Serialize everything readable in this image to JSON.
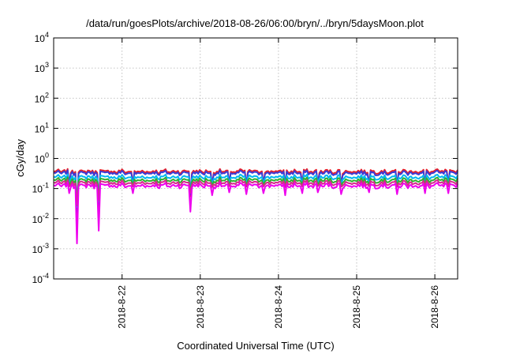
{
  "chart_data": {
    "type": "line",
    "title": "/data/run/goesPlots/archive/2018-08-26/06:00/bryn/../bryn/5daysMoon.plot",
    "xlabel": "Coordinated Universal Time (UTC)",
    "ylabel": "cGy/day",
    "yscale": "log",
    "ylim": [
      0.0001,
      10000
    ],
    "y_ticks": [
      {
        "base": "10",
        "exp": "-4"
      },
      {
        "base": "10",
        "exp": "-3"
      },
      {
        "base": "10",
        "exp": "-2"
      },
      {
        "base": "10",
        "exp": "-1"
      },
      {
        "base": "10",
        "exp": "0"
      },
      {
        "base": "10",
        "exp": "1"
      },
      {
        "base": "10",
        "exp": "2"
      },
      {
        "base": "10",
        "exp": "3"
      },
      {
        "base": "10",
        "exp": "4"
      }
    ],
    "xlim": [
      "2018-08-21 03:00",
      "2018-08-26 07:00"
    ],
    "x_ticks": [
      "2018-8-22",
      "2018-8-23",
      "2018-8-24",
      "2018-8-25",
      "2018-8-26"
    ],
    "grid": true,
    "legend": "none",
    "series": [
      {
        "color": "#e8202a",
        "base": 0.37,
        "spike_depth": 0.62
      },
      {
        "color": "#3b3bd6",
        "base": 0.33,
        "spike_depth": 0.55
      },
      {
        "color": "#00b8f0",
        "base": 0.24,
        "spike_depth": 0.45
      },
      {
        "color": "#30b030",
        "base": 0.19,
        "spike_depth": 0.4
      },
      {
        "color": "#d42a8a",
        "base": 0.155,
        "spike_depth": 0.35
      },
      {
        "color": "#ee00ee",
        "base": 0.125,
        "spike_depth": 1.0
      }
    ],
    "dips": [
      {
        "t": "2018-08-21 10:15",
        "min": 0.0015
      },
      {
        "t": "2018-08-21 17:00",
        "min": 0.004
      },
      {
        "t": "2018-08-22 21:00",
        "min": 0.017
      },
      {
        "t": "2018-08-21 08:00",
        "min": 0.07
      },
      {
        "t": "2018-08-22 03:30",
        "min": 0.07
      },
      {
        "t": "2018-08-23 03:30",
        "min": 0.06
      },
      {
        "t": "2018-08-23 08:40",
        "min": 0.075
      },
      {
        "t": "2018-08-23 14:20",
        "min": 0.065
      },
      {
        "t": "2018-08-23 19:30",
        "min": 0.07
      },
      {
        "t": "2018-08-24 02:00",
        "min": 0.06
      },
      {
        "t": "2018-08-24 07:30",
        "min": 0.07
      },
      {
        "t": "2018-08-24 12:00",
        "min": 0.075
      },
      {
        "t": "2018-08-24 19:00",
        "min": 0.065
      },
      {
        "t": "2018-08-25 04:00",
        "min": 0.075
      },
      {
        "t": "2018-08-25 12:30",
        "min": 0.065
      },
      {
        "t": "2018-08-25 21:00",
        "min": 0.07
      },
      {
        "t": "2018-08-26 04:00",
        "min": 0.07
      }
    ]
  }
}
